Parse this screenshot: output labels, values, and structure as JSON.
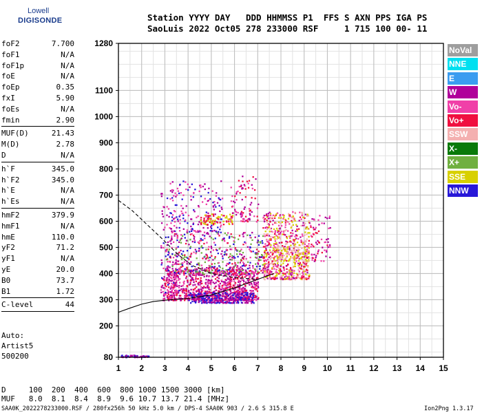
{
  "logo": {
    "line1": "Lowell",
    "line2": "DIGISONDE"
  },
  "header": {
    "line1": "Station YYYY DAY   DDD HHMMSS P1  FFS S AXN PPS IGA PS",
    "line2": "SaoLuis 2022 Oct05 278 233000 RSF     1 715 100 00- 11"
  },
  "params": [
    {
      "k": "foF2",
      "v": "7.700"
    },
    {
      "k": "foF1",
      "v": "N/A"
    },
    {
      "k": "foF1p",
      "v": "N/A"
    },
    {
      "k": "foE",
      "v": "N/A"
    },
    {
      "k": "foEp",
      "v": "0.35"
    },
    {
      "k": "fxI",
      "v": "5.90"
    },
    {
      "k": "foEs",
      "v": "N/A"
    },
    {
      "k": "fmin",
      "v": "2.90"
    },
    {
      "sep": true
    },
    {
      "k": "MUF(D)",
      "v": "21.43"
    },
    {
      "k": "M(D)",
      "v": "2.78"
    },
    {
      "k": "D",
      "v": "N/A"
    },
    {
      "sep": true
    },
    {
      "k": "h`F",
      "v": "345.0"
    },
    {
      "k": "h`F2",
      "v": "345.0"
    },
    {
      "k": "h`E",
      "v": "N/A"
    },
    {
      "k": "h`Es",
      "v": "N/A"
    },
    {
      "sep": true
    },
    {
      "k": "hmF2",
      "v": "379.9"
    },
    {
      "k": "hmF1",
      "v": "N/A"
    },
    {
      "k": "hmE",
      "v": "110.0"
    },
    {
      "k": "yF2",
      "v": "71.2"
    },
    {
      "k": "yF1",
      "v": "N/A"
    },
    {
      "k": "yE",
      "v": "20.0"
    },
    {
      "k": "B0",
      "v": "73.7"
    },
    {
      "k": "B1",
      "v": "1.72"
    },
    {
      "sep": true
    },
    {
      "k": "C-level",
      "v": "44"
    },
    {
      "sep": true
    }
  ],
  "auto": {
    "line1": "Auto:",
    "line2": "Artist5",
    "line3": "500200"
  },
  "legend": [
    {
      "label": "NoVal",
      "color": "#9e9e9e"
    },
    {
      "label": "NNE",
      "color": "#00e0f0"
    },
    {
      "label": "E",
      "color": "#3a9cf0"
    },
    {
      "label": "W",
      "color": "#b0009a"
    },
    {
      "label": "Vo-",
      "color": "#f040a8"
    },
    {
      "label": "Vo+",
      "color": "#f01040"
    },
    {
      "label": "SSW",
      "color": "#f4b0b0"
    },
    {
      "label": "X-",
      "color": "#0a7a0a"
    },
    {
      "label": "X+",
      "color": "#70b040"
    },
    {
      "label": "SSE",
      "color": "#d8d000"
    },
    {
      "label": "NNW",
      "color": "#2818d8"
    }
  ],
  "dmuf": {
    "dline": "D     100  200  400  600  800 1000 1500 3000 [km]",
    "mline": "MUF   8.0  8.1  8.4  8.9  9.6 10.7 13.7 21.4 [MHz]"
  },
  "footer": {
    "left": "SAA0K_2022278233000.RSF / 280fx256h 50 kHz 5.0 km / DPS-4 SAA0K 903 / 2.6 S 315.8 E",
    "right": "Ion2Png 1.3.17"
  },
  "chart_data": {
    "type": "scatter",
    "xlim": [
      1,
      15
    ],
    "ylim": [
      80,
      1280
    ],
    "xticks": [
      1,
      2,
      3,
      4,
      5,
      6,
      7,
      8,
      9,
      10,
      11,
      12,
      13,
      14,
      15
    ],
    "yticks": [
      80,
      200,
      300,
      400,
      500,
      600,
      700,
      800,
      900,
      1000,
      1100,
      1280
    ],
    "grid": true,
    "clusters": [
      {
        "x": [
          2.9,
          7.0
        ],
        "y": [
          300,
          420
        ],
        "n": 900,
        "colors": [
          "#b0009a",
          "#f040a8",
          "#b0009a",
          "#f01040"
        ]
      },
      {
        "x": [
          3.0,
          7.2
        ],
        "y": [
          400,
          560
        ],
        "n": 500,
        "colors": [
          "#b0009a",
          "#f040a8",
          "#f01040",
          "#2818d8",
          "#70b040"
        ]
      },
      {
        "x": [
          3.2,
          5.5
        ],
        "y": [
          560,
          760
        ],
        "n": 160,
        "colors": [
          "#b0009a",
          "#f040a8",
          "#2818d8"
        ]
      },
      {
        "x": [
          7.2,
          9.2
        ],
        "y": [
          380,
          640
        ],
        "n": 700,
        "colors": [
          "#f040a8",
          "#f01040",
          "#b0009a",
          "#f4b0b0",
          "#d8d000"
        ]
      },
      {
        "x": [
          5.8,
          7.0
        ],
        "y": [
          600,
          780
        ],
        "n": 90,
        "colors": [
          "#b0009a",
          "#f040a8",
          "#f01040"
        ]
      },
      {
        "x": [
          9.2,
          10.1
        ],
        "y": [
          450,
          630
        ],
        "n": 70,
        "colors": [
          "#f040a8",
          "#b0009a",
          "#f01040"
        ]
      },
      {
        "x": [
          4.0,
          6.8
        ],
        "y": [
          290,
          330
        ],
        "n": 260,
        "colors": [
          "#b0009a",
          "#2818d8"
        ]
      },
      {
        "x": [
          1.1,
          2.3
        ],
        "y": [
          82,
          90
        ],
        "n": 50,
        "colors": [
          "#2818d8",
          "#b0009a"
        ]
      },
      {
        "x": [
          2.8,
          3.6
        ],
        "y": [
          330,
          720
        ],
        "n": 120,
        "colors": [
          "#b0009a",
          "#2818d8",
          "#f040a8"
        ]
      },
      {
        "x": [
          4.5,
          5.9
        ],
        "y": [
          590,
          630
        ],
        "n": 80,
        "colors": [
          "#d8d000",
          "#f01040"
        ]
      },
      {
        "x": [
          7.8,
          9.2
        ],
        "y": [
          450,
          520
        ],
        "n": 90,
        "colors": [
          "#d8d000",
          "#f4b0b0"
        ]
      }
    ],
    "solid_profile": [
      [
        1,
        252
      ],
      [
        1.5,
        268
      ],
      [
        2,
        283
      ],
      [
        2.5,
        293
      ],
      [
        3,
        298
      ],
      [
        4,
        305
      ],
      [
        5,
        318
      ],
      [
        6,
        345
      ],
      [
        7,
        378
      ],
      [
        7.7,
        400
      ]
    ],
    "dashed_profile": [
      [
        1,
        680
      ],
      [
        1.6,
        640
      ],
      [
        2.2,
        590
      ],
      [
        2.8,
        540
      ],
      [
        3.2,
        505
      ],
      [
        3.6,
        470
      ],
      [
        4.2,
        430
      ],
      [
        5,
        400
      ],
      [
        6,
        385
      ],
      [
        7,
        378
      ]
    ]
  }
}
